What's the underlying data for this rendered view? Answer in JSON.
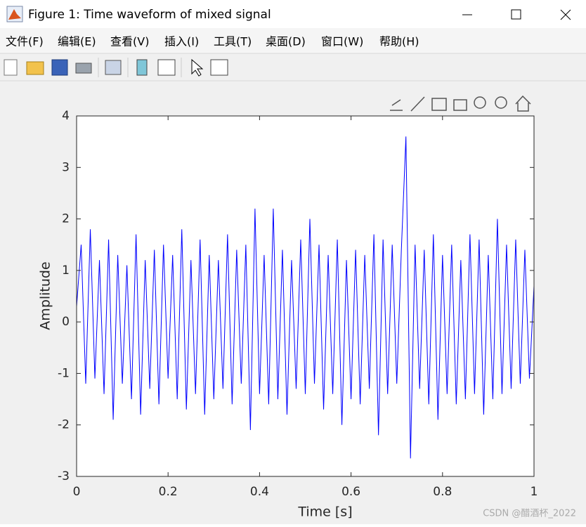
{
  "window": {
    "title": "Figure 1: Time waveform of mixed signal",
    "menu": [
      "文件(F)",
      "编辑(E)",
      "查看(V)",
      "插入(I)",
      "工具(T)",
      "桌面(D)",
      "窗口(W)",
      "帮助(H)"
    ],
    "watermark": "CSDN @醋酒杯_2022"
  },
  "chart_data": {
    "type": "line",
    "x_label": "Time [s]",
    "y_label": "Amplitude",
    "x": [
      0,
      0.01,
      0.02,
      0.03,
      0.04,
      0.05,
      0.06,
      0.07,
      0.08,
      0.09,
      0.1,
      0.11,
      0.12,
      0.13,
      0.14,
      0.15,
      0.16,
      0.17,
      0.18,
      0.19,
      0.2,
      0.21,
      0.22,
      0.23,
      0.24,
      0.25,
      0.26,
      0.27,
      0.28,
      0.29,
      0.3,
      0.31,
      0.32,
      0.33,
      0.34,
      0.35,
      0.36,
      0.37,
      0.38,
      0.39,
      0.4,
      0.41,
      0.42,
      0.43,
      0.44,
      0.45,
      0.46,
      0.47,
      0.48,
      0.49,
      0.5,
      0.51,
      0.52,
      0.53,
      0.54,
      0.55,
      0.56,
      0.57,
      0.58,
      0.59,
      0.6,
      0.61,
      0.62,
      0.63,
      0.64,
      0.65,
      0.66,
      0.67,
      0.68,
      0.69,
      0.7,
      0.71,
      0.72,
      0.73,
      0.74,
      0.75,
      0.76,
      0.77,
      0.78,
      0.79,
      0.8,
      0.81,
      0.82,
      0.83,
      0.84,
      0.85,
      0.86,
      0.87,
      0.88,
      0.89,
      0.9,
      0.91,
      0.92,
      0.93,
      0.94,
      0.95,
      0.96,
      0.97,
      0.98,
      0.99,
      1
    ],
    "series": [
      {
        "color": "#0000ff",
        "values": [
          0.3,
          1.5,
          -1.2,
          1.8,
          -1.1,
          1.2,
          -1.4,
          1.6,
          -1.9,
          1.3,
          -1.2,
          1.1,
          -1.5,
          1.7,
          -1.8,
          1.2,
          -1.3,
          1.4,
          -1.6,
          1.5,
          -1.1,
          1.3,
          -1.5,
          1.8,
          -1.7,
          1.2,
          -1.4,
          1.6,
          -1.8,
          1.3,
          -1.5,
          1.2,
          -1.3,
          1.7,
          -1.6,
          1.4,
          -1.2,
          1.5,
          -2.1,
          2.2,
          -1.4,
          1.3,
          -1.6,
          2.2,
          -1.5,
          1.4,
          -1.8,
          1.2,
          -1.3,
          1.6,
          -1.4,
          2.0,
          -1.2,
          1.5,
          -1.7,
          1.3,
          -1.4,
          1.6,
          -2.0,
          1.2,
          -1.5,
          1.4,
          -1.6,
          1.3,
          -1.3,
          1.7,
          -2.2,
          1.6,
          -1.4,
          1.5,
          -1.2,
          1.4,
          3.6,
          -2.65,
          1.5,
          -1.3,
          1.4,
          -1.6,
          1.7,
          -1.9,
          1.3,
          -1.4,
          1.5,
          -1.6,
          1.2,
          -1.5,
          1.7,
          -1.4,
          1.6,
          -1.8,
          1.3,
          -1.5,
          2.0,
          -1.4,
          1.5,
          -1.3,
          1.6,
          -1.2,
          1.4,
          -1.1,
          0.7
        ]
      }
    ],
    "xlim": [
      0,
      1
    ],
    "ylim": [
      -3,
      4
    ],
    "xticks": [
      0,
      0.2,
      0.4,
      0.6,
      0.8,
      1
    ],
    "yticks": [
      -3,
      -2,
      -1,
      0,
      1,
      2,
      3,
      4
    ]
  }
}
